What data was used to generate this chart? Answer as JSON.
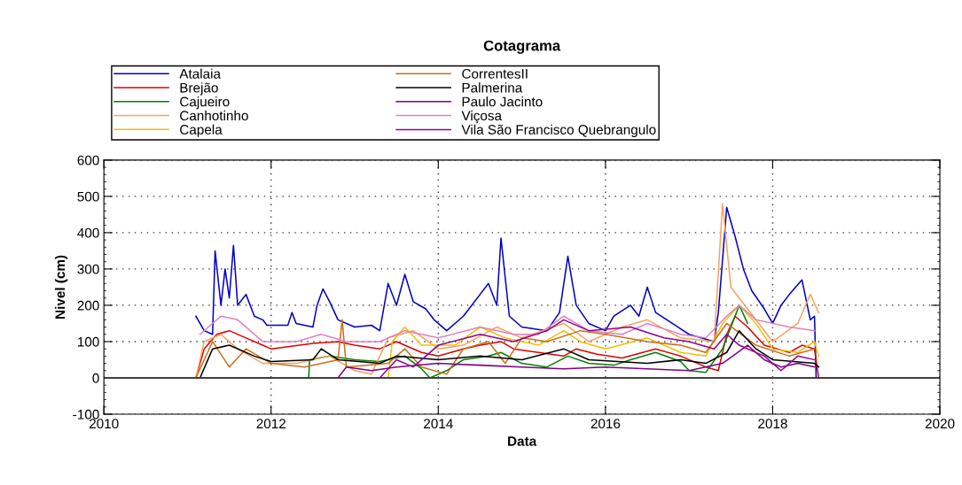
{
  "chart_data": {
    "type": "line",
    "title": "Cotagrama",
    "xlabel": "Data",
    "ylabel": "Nivel (cm)",
    "xlim": [
      2010,
      2020
    ],
    "xticks": [
      2010,
      2012,
      2014,
      2016,
      2018,
      2020
    ],
    "ylim": [
      -100,
      600
    ],
    "yticks": [
      -100,
      0,
      100,
      200,
      300,
      400,
      500,
      600
    ],
    "grid": true,
    "legend": "top",
    "line_style": "solid",
    "ref_lines": [
      {
        "axis": "y",
        "value": 0,
        "color": "#404040"
      }
    ],
    "series": [
      {
        "name": "Atalaia",
        "color": "#0000c0",
        "x": [
          2011.1,
          2011.2,
          2011.3,
          2011.33,
          2011.4,
          2011.45,
          2011.5,
          2011.55,
          2011.6,
          2011.7,
          2011.8,
          2011.9,
          2011.95,
          2012.2,
          2012.25,
          2012.3,
          2012.5,
          2012.55,
          2012.62,
          2012.7,
          2012.8,
          2013.0,
          2013.2,
          2013.3,
          2013.4,
          2013.5,
          2013.6,
          2013.7,
          2013.85,
          2013.95,
          2014.1,
          2014.3,
          2014.4,
          2014.5,
          2014.6,
          2014.7,
          2014.75,
          2014.85,
          2015.0,
          2015.3,
          2015.45,
          2015.55,
          2015.65,
          2015.8,
          2016.0,
          2016.1,
          2016.3,
          2016.4,
          2016.5,
          2016.6,
          2016.8,
          2017.0,
          2017.3,
          2017.35,
          2017.45,
          2017.55,
          2017.65,
          2017.75,
          2017.9,
          2018.0,
          2018.1,
          2018.2,
          2018.35,
          2018.45,
          2018.5,
          2018.52
        ],
        "values": [
          170,
          130,
          120,
          350,
          200,
          300,
          220,
          365,
          200,
          230,
          170,
          160,
          145,
          145,
          180,
          150,
          140,
          200,
          245,
          210,
          160,
          140,
          145,
          130,
          260,
          200,
          285,
          210,
          190,
          160,
          130,
          170,
          200,
          230,
          260,
          200,
          385,
          170,
          140,
          130,
          180,
          335,
          200,
          150,
          130,
          170,
          200,
          170,
          250,
          180,
          150,
          120,
          100,
          180,
          470,
          390,
          300,
          240,
          190,
          150,
          200,
          230,
          270,
          160,
          170,
          0
        ]
      },
      {
        "name": "Brejão",
        "color": "#e00000",
        "x": [
          2011.1,
          2011.2,
          2011.35,
          2011.5,
          2011.7,
          2011.9,
          2012.0,
          2012.5,
          2012.8,
          2013.0,
          2013.3,
          2013.5,
          2013.8,
          2014.0,
          2014.3,
          2014.5,
          2014.75,
          2014.9,
          2015.2,
          2015.5,
          2015.65,
          2015.9,
          2016.2,
          2016.6,
          2016.9,
          2017.2,
          2017.35,
          2017.45,
          2017.55,
          2017.7,
          2017.9,
          2018.2,
          2018.35,
          2018.5,
          2018.55
        ],
        "values": [
          0,
          80,
          120,
          130,
          110,
          90,
          80,
          95,
          100,
          90,
          80,
          100,
          70,
          60,
          80,
          90,
          100,
          80,
          70,
          60,
          80,
          65,
          55,
          80,
          60,
          30,
          20,
          120,
          170,
          140,
          90,
          70,
          90,
          80,
          0
        ]
      },
      {
        "name": "Cajueiro",
        "color": "#008000",
        "x": [
          2011.1,
          2012.45,
          2012.46,
          2012.7,
          2013.0,
          2013.3,
          2013.6,
          2013.8,
          2013.9,
          2014.1,
          2014.3,
          2014.6,
          2014.75,
          2015.0,
          2015.3,
          2015.55,
          2015.8,
          2016.1,
          2016.3,
          2016.6,
          2016.9,
          2017.0,
          2017.2,
          2017.4,
          2017.6,
          2017.7
        ],
        "values": [
          0,
          0,
          50,
          60,
          50,
          45,
          60,
          25,
          0,
          20,
          50,
          60,
          70,
          40,
          30,
          60,
          40,
          35,
          50,
          70,
          45,
          20,
          15,
          80,
          200,
          150
        ]
      },
      {
        "name": "Canhotinho",
        "color": "#f4a460",
        "x": [
          2011.1,
          2011.2,
          2011.4,
          2011.6,
          2011.9,
          2012.3,
          2012.7,
          2013.0,
          2013.2,
          2013.4,
          2013.7,
          2014.0,
          2014.3,
          2014.7,
          2015.0,
          2015.5,
          2015.8,
          2016.2,
          2016.5,
          2016.9,
          2017.3,
          2017.4,
          2017.5,
          2017.8,
          2018.0,
          2018.3,
          2018.45,
          2018.55
        ],
        "values": [
          0,
          100,
          120,
          80,
          40,
          40,
          60,
          20,
          10,
          110,
          130,
          80,
          90,
          140,
          110,
          150,
          100,
          140,
          160,
          110,
          100,
          480,
          250,
          160,
          100,
          150,
          230,
          180
        ]
      },
      {
        "name": "Capela",
        "color": "#f0c000",
        "x": [
          2013.4,
          2013.45,
          2013.6,
          2013.8,
          2014.2,
          2014.5,
          2014.8,
          2015.2,
          2015.5,
          2015.7,
          2016.0,
          2016.5,
          2016.9,
          2017.2,
          2017.4,
          2017.6,
          2017.8,
          2018.0,
          2018.3,
          2018.5,
          2018.55
        ],
        "values": [
          0,
          100,
          140,
          90,
          90,
          140,
          110,
          90,
          130,
          100,
          80,
          110,
          70,
          60,
          150,
          200,
          150,
          80,
          70,
          100,
          60
        ]
      },
      {
        "name": "CorrentesII",
        "color": "#c87020",
        "x": [
          2011.1,
          2011.3,
          2011.5,
          2011.7,
          2012.0,
          2012.4,
          2012.8,
          2012.85,
          2012.9,
          2013.4,
          2013.6,
          2013.8,
          2014.1,
          2014.3,
          2014.6,
          2014.8,
          2015.0,
          2015.3,
          2015.7,
          2016.0,
          2016.5,
          2016.9,
          2017.2,
          2017.45,
          2017.8,
          2018.2,
          2018.5
        ],
        "values": [
          0,
          100,
          30,
          80,
          40,
          30,
          50,
          160,
          30,
          40,
          80,
          30,
          10,
          80,
          100,
          40,
          110,
          100,
          130,
          120,
          100,
          90,
          70,
          150,
          90,
          60,
          80
        ]
      },
      {
        "name": "Palmerina",
        "color": "#000000",
        "x": [
          2011.15,
          2011.3,
          2011.5,
          2011.8,
          2012.0,
          2012.5,
          2012.6,
          2012.8,
          2013.3,
          2013.5,
          2014.0,
          2014.5,
          2015.0,
          2015.5,
          2015.8,
          2016.5,
          2016.9,
          2017.2,
          2017.45,
          2017.6,
          2017.8,
          2018.0,
          2018.5,
          2018.55
        ],
        "values": [
          0,
          80,
          90,
          60,
          45,
          50,
          80,
          50,
          40,
          60,
          50,
          60,
          50,
          80,
          50,
          40,
          50,
          40,
          70,
          130,
          80,
          50,
          40,
          30
        ]
      },
      {
        "name": "Paulo Jacinto",
        "color": "#800080",
        "x": [
          2012.8,
          2012.9,
          2013.2,
          2013.5,
          2014.0,
          2014.5,
          2015.0,
          2015.5,
          2016.0,
          2016.5,
          2017.0,
          2017.4,
          2017.7,
          2017.9,
          2018.1,
          2018.3,
          2018.5
        ],
        "values": [
          0,
          30,
          20,
          30,
          40,
          35,
          30,
          25,
          30,
          25,
          20,
          40,
          90,
          50,
          30,
          40,
          30
        ]
      },
      {
        "name": "Viçosa",
        "color": "#e080c0",
        "x": [
          2011.15,
          2011.4,
          2011.6,
          2011.9,
          2012.3,
          2012.6,
          2012.9,
          2013.3,
          2013.6,
          2014.0,
          2014.5,
          2014.9,
          2015.2,
          2015.5,
          2015.8,
          2016.2,
          2016.5,
          2016.9,
          2017.2,
          2017.45,
          2017.6,
          2017.8,
          2018.2,
          2018.5
        ],
        "values": [
          120,
          170,
          160,
          100,
          100,
          120,
          100,
          100,
          130,
          110,
          140,
          120,
          120,
          170,
          130,
          120,
          150,
          120,
          110,
          170,
          200,
          160,
          140,
          130
        ]
      },
      {
        "name": "Vila São Francisco Quebrangulo",
        "color": "#900090",
        "x": [
          2013.3,
          2013.5,
          2013.7,
          2014.0,
          2014.5,
          2014.9,
          2015.3,
          2015.5,
          2015.8,
          2016.3,
          2016.7,
          2017.0,
          2017.3,
          2017.45,
          2017.6,
          2017.9,
          2018.1,
          2018.3,
          2018.5
        ],
        "values": [
          0,
          50,
          30,
          90,
          120,
          100,
          130,
          160,
          130,
          140,
          110,
          100,
          80,
          120,
          90,
          60,
          20,
          60,
          50
        ]
      }
    ]
  }
}
